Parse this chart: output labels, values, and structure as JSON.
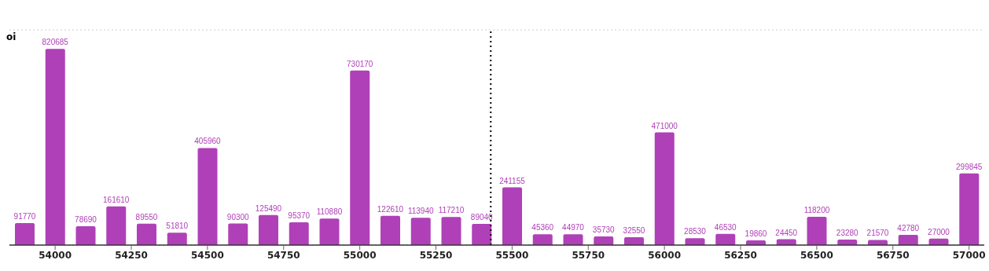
{
  "chart_data": {
    "type": "bar",
    "ylabel": "oi",
    "x": [
      53900,
      54000,
      54100,
      54200,
      54300,
      54400,
      54500,
      54600,
      54700,
      54800,
      54900,
      55000,
      55100,
      55200,
      55300,
      55400,
      55500,
      55600,
      55700,
      55800,
      55900,
      56000,
      56100,
      56200,
      56300,
      56400,
      56500,
      56600,
      56700,
      56800,
      56900,
      57000
    ],
    "values": [
      91770,
      820685,
      78690,
      161610,
      89550,
      51810,
      405960,
      90300,
      125490,
      95370,
      110880,
      730170,
      122610,
      113940,
      117210,
      89040,
      241155,
      45360,
      44970,
      35730,
      32550,
      471000,
      28530,
      46530,
      19860,
      24450,
      118200,
      23280,
      21570,
      42780,
      27000,
      299845
    ],
    "color": "#b040b8",
    "data_labels": true,
    "xlim": [
      53850,
      57050
    ],
    "xticks": [
      54000,
      54250,
      54500,
      54750,
      55000,
      55250,
      55500,
      55750,
      56000,
      56250,
      56500,
      56750,
      57000
    ],
    "ylim": [
      0,
      900000
    ],
    "tick_labels": "x",
    "grid": "y",
    "ref_lines": [
      {
        "axis": "x",
        "value": 55430,
        "color": "#000000",
        "line_style": "dotted"
      }
    ]
  }
}
